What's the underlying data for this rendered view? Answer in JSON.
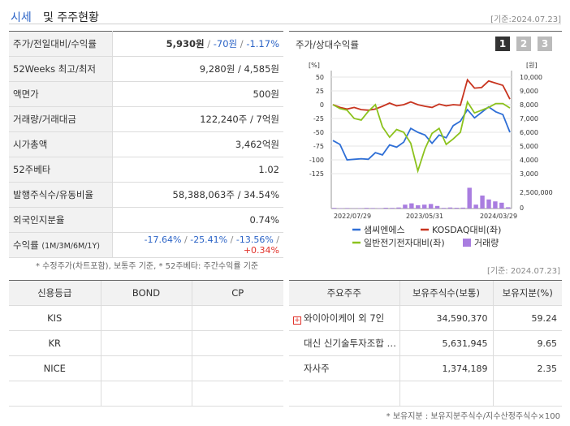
{
  "header": {
    "title_a": "시세",
    "title_b": "및 주주현황",
    "date": "[기준:2024.07.23]"
  },
  "price_rows": [
    {
      "key": "주가/전일대비/수익률"
    },
    {
      "key": "52Weeks 최고/최저",
      "value": "9,280원 / 4,585원"
    },
    {
      "key": "액면가",
      "value": "500원"
    },
    {
      "key": "거래량/거래대금",
      "value": "122,240주 / 7억원"
    },
    {
      "key": "시가총액",
      "value": "3,462억원"
    },
    {
      "key": "52주베타",
      "value": "1.02"
    },
    {
      "key": "발행주식수/유동비율",
      "value": "58,388,063주 / 34.54%"
    },
    {
      "key": "외국인지분율",
      "value": "0.74%"
    },
    {
      "key": "수익률"
    }
  ],
  "price_summary": {
    "price": "5,930원",
    "sep1": " / ",
    "change": "-70원",
    "sep2": " / ",
    "rate": "-1.17%"
  },
  "returns": {
    "label_small": "(1M/3M/6M/1Y)",
    "r1": "-17.64%",
    "r2": "-25.41%",
    "r3": "-13.56%",
    "r4": "+0.34%",
    "sep": "/"
  },
  "note1": "* 수정주가(차트포함), 보통주 기준, * 52주베타: 주간수익률 기준",
  "chart_panel": {
    "title": "주가/상대수익률",
    "buttons": [
      "1",
      "2",
      "3"
    ]
  },
  "chart_data": {
    "type": "line",
    "x_ticks": [
      "2022/07/29",
      "2023/05/31",
      "2024/03/29"
    ],
    "left_axis": {
      "unit": "[%]",
      "ticks": [
        "50",
        "25",
        "0",
        "-25",
        "-50",
        "-75",
        "-100",
        "-125"
      ],
      "ylim": [
        -125,
        50
      ]
    },
    "right_axis": {
      "unit": "[원]",
      "ticks": [
        "10,000",
        "9,000",
        "8,000",
        "7,000",
        "6,000",
        "5,000",
        "4,000",
        "3,000"
      ],
      "ylim": [
        3000,
        10000
      ]
    },
    "volume_axis": {
      "ticks": [
        "2,500,000",
        "0"
      ]
    },
    "series": [
      {
        "name": "샘씨엔에스",
        "color": "#2f6fd6",
        "values": [
          -65,
          -72,
          -100,
          -99,
          -98,
          -99,
          -87,
          -91,
          -73,
          -77,
          -68,
          -43,
          -50,
          -55,
          -70,
          -55,
          -60,
          -38,
          -30,
          -9,
          -24,
          -14,
          -4,
          -13,
          -18,
          -50
        ]
      },
      {
        "name": "KOSDAQ대비(좌)",
        "color": "#c8341f",
        "values": [
          0,
          -5,
          -8,
          -5,
          -9,
          -10,
          -8,
          -3,
          3,
          -2,
          0,
          5,
          0,
          -3,
          -5,
          1,
          -2,
          0,
          -1,
          45,
          30,
          31,
          43,
          39,
          35,
          10
        ]
      },
      {
        "name": "일반전기전자대비(좌)",
        "color": "#8cc21d",
        "values": [
          0,
          -7,
          -10,
          -25,
          -28,
          -12,
          0,
          -40,
          -59,
          -45,
          -50,
          -70,
          -120,
          -80,
          -52,
          -43,
          -72,
          -62,
          -50,
          5,
          -15,
          -10,
          -5,
          2,
          2,
          -6
        ]
      }
    ],
    "volume": {
      "name": "거래량",
      "color": "#a97de0",
      "values": [
        0.05,
        0.03,
        0.04,
        0.02,
        0.03,
        0.05,
        0.04,
        0.03,
        0.06,
        0.05,
        0.08,
        0.3,
        0.4,
        0.25,
        0.3,
        0.35,
        0.2,
        0.05,
        0.08,
        0.06,
        0.07,
        1.6,
        0.3,
        1.0,
        0.7,
        0.55,
        0.45,
        0.1
      ]
    }
  },
  "note2": "[기준: 2024.07.23]",
  "credit": {
    "headers": [
      "신용등급",
      "BOND",
      "CP"
    ],
    "rows": [
      [
        "KIS",
        "",
        ""
      ],
      [
        "KR",
        "",
        ""
      ],
      [
        "NICE",
        "",
        ""
      ],
      [
        "",
        "",
        ""
      ]
    ]
  },
  "holders": {
    "headers": [
      "주요주주",
      "보유주식수(보통)",
      "보유지분(%)"
    ],
    "plus_icon": "+",
    "rows": [
      {
        "name": "와이아이케이 외 7인",
        "shares": "34,590,370",
        "pct": "59.24"
      },
      {
        "name": "대신 신기술투자조합 …",
        "shares": "5,631,945",
        "pct": "9.65"
      },
      {
        "name": "자사주",
        "shares": "1,374,189",
        "pct": "2.35"
      },
      {
        "name": "",
        "shares": "",
        "pct": ""
      }
    ]
  },
  "note3": "* 보유지분 : 보유지분주식수/지수산정주식수×100"
}
